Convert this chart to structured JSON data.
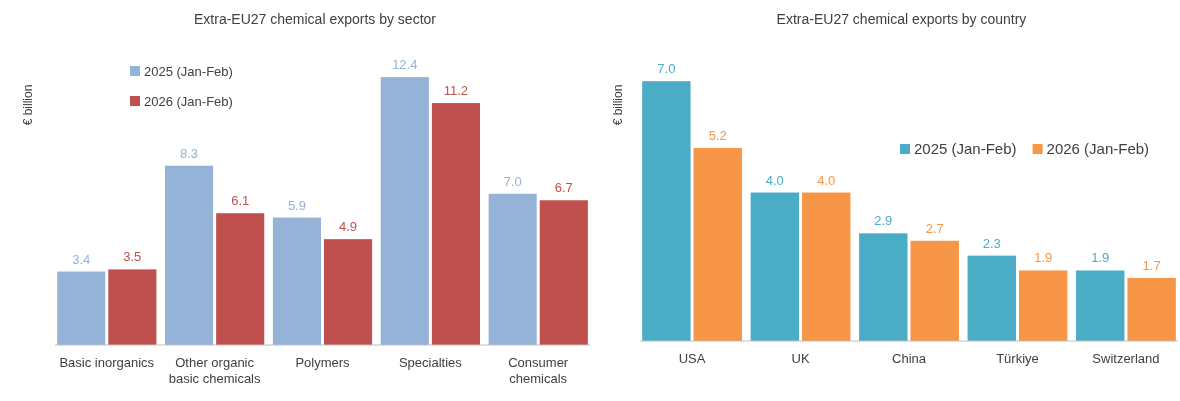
{
  "chart_data": [
    {
      "type": "bar",
      "title": "Extra-EU27 chemical exports by sector",
      "ylabel": "€ billion",
      "categories": [
        "Basic inorganics",
        "Other organic basic chemicals",
        "Polymers",
        "Specialties",
        "Consumer chemicals"
      ],
      "series": [
        {
          "name": "2025 (Jan-Feb)",
          "color": "#95b3d7",
          "values": [
            3.4,
            8.3,
            5.9,
            12.4,
            7.0
          ],
          "value_labels": [
            "3.4",
            "8.3",
            "5.9",
            "12.4",
            "7.0"
          ]
        },
        {
          "name": "2026 (Jan-Feb)",
          "color": "#c0504d",
          "values": [
            3.5,
            6.1,
            4.9,
            11.2,
            6.7
          ],
          "value_labels": [
            "3.5",
            "6.1",
            "4.9",
            "11.2",
            "6.7"
          ]
        }
      ],
      "legend": "top left"
    },
    {
      "type": "bar",
      "title": "Extra-EU27 chemical exports by country",
      "ylabel": "€ billion",
      "categories": [
        "USA",
        "UK",
        "China",
        "Türkiye",
        "Switzerland"
      ],
      "series": [
        {
          "name": "2025 (Jan-Feb)",
          "color": "#4bacc6",
          "values": [
            7.0,
            4.0,
            2.9,
            2.3,
            1.9
          ],
          "value_labels": [
            "7.0",
            "4.0",
            "2.9",
            "2.3",
            "1.9"
          ]
        },
        {
          "name": "2026 (Jan-Feb)",
          "color": "#f79646",
          "values": [
            5.2,
            4.0,
            2.7,
            1.9,
            1.7
          ],
          "value_labels": [
            "5.2",
            "4.0",
            "2.7",
            "1.9",
            "1.7"
          ]
        }
      ],
      "legend": "right"
    }
  ]
}
